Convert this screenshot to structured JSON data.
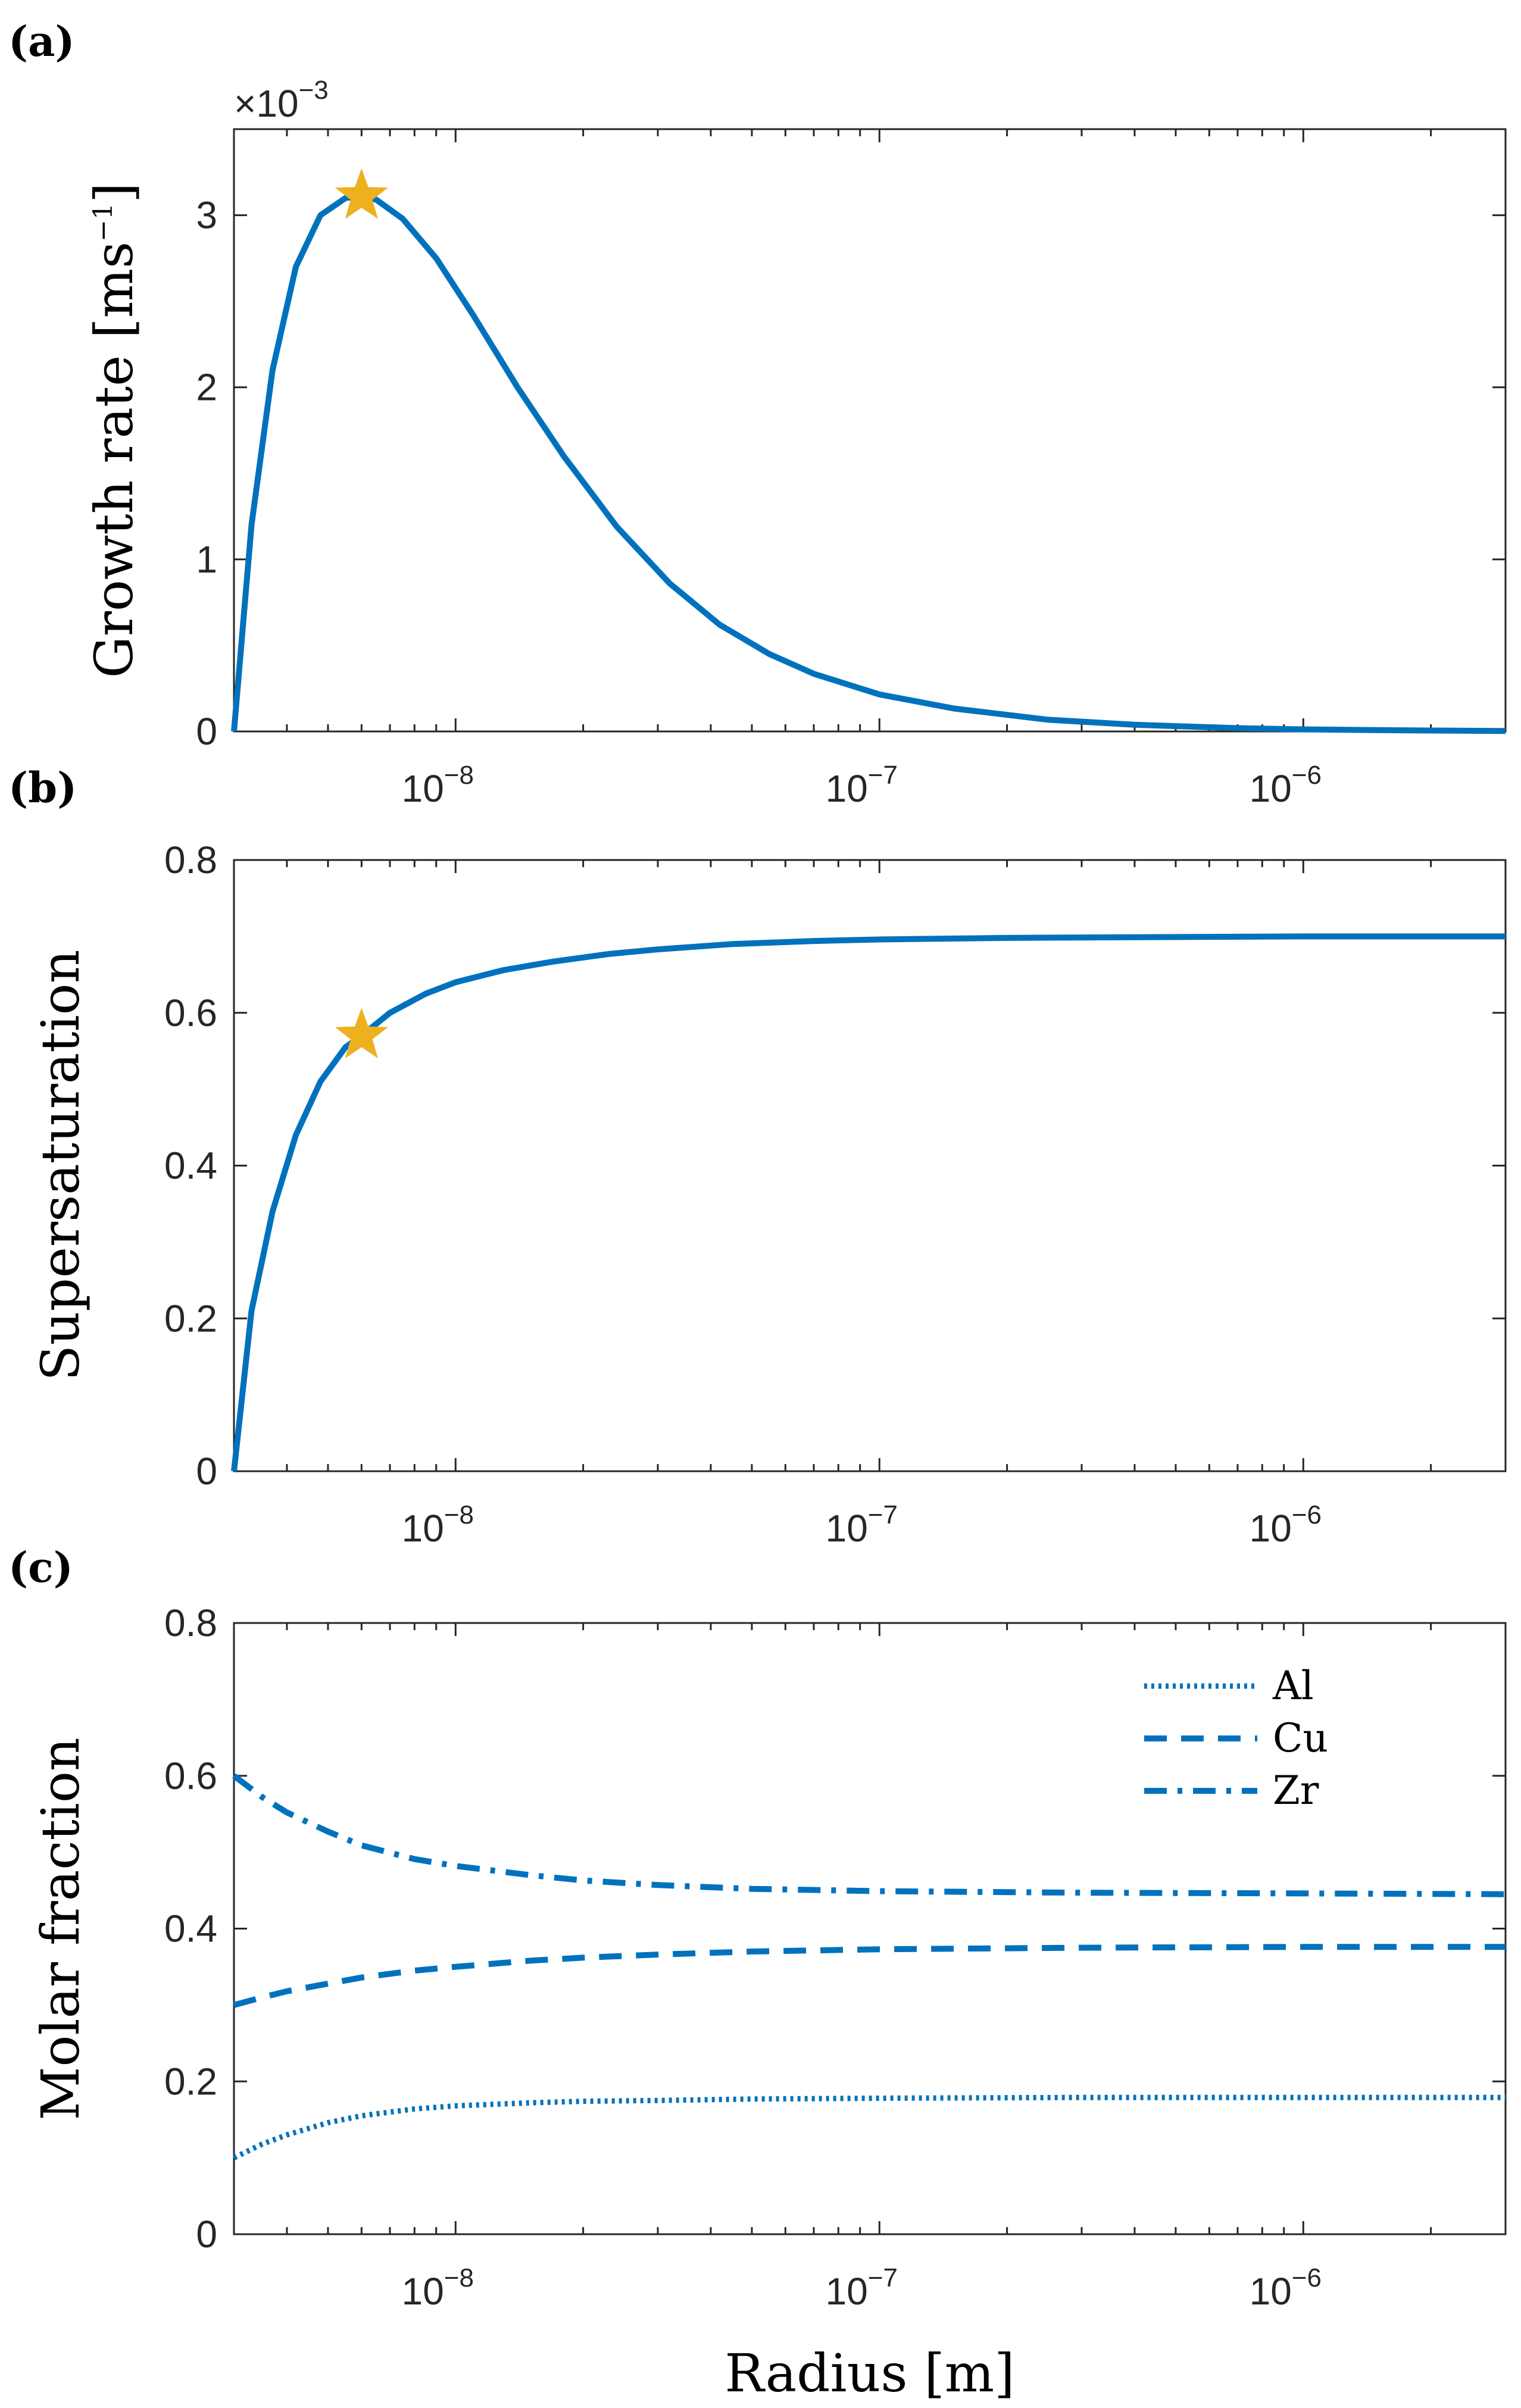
{
  "figure_labels": {
    "a": "(a)",
    "b": "(b)",
    "c": "(c)"
  },
  "colors": {
    "series": "#0072BD",
    "marker": "#EDB120",
    "axes": "#262626"
  },
  "chart_data": [
    {
      "id": "a",
      "type": "line",
      "title": "",
      "xlabel": "",
      "ylabel": "Growth rate [ms−1]",
      "ylabel_main": "Growth rate [ms",
      "ylabel_sup": "−1",
      "ylabel_end": "]",
      "xscale": "log",
      "xlim": [
        3e-09,
        3e-06
      ],
      "ylim": [
        0,
        3.5
      ],
      "y_multiplier": "×10",
      "y_multiplier_exp": "−3",
      "yticks": [
        0,
        1,
        2,
        3
      ],
      "yticklabels": [
        "0",
        "1",
        "2",
        "3"
      ],
      "xticks": [
        1e-08,
        1e-07,
        1e-06
      ],
      "xtick_base": "10",
      "xtick_exps": [
        "−8",
        "−7",
        "−6"
      ],
      "series": [
        {
          "name": "Growth rate",
          "x": [
            3e-09,
            3.3e-09,
            3.7e-09,
            4.2e-09,
            4.8e-09,
            5.5e-09,
            6e-09,
            6.5e-09,
            7.5e-09,
            9e-09,
            1.1e-08,
            1.4e-08,
            1.8e-08,
            2.4e-08,
            3.2e-08,
            4.2e-08,
            5.5e-08,
            7e-08,
            1e-07,
            1.5e-07,
            2.5e-07,
            4e-07,
            7e-07,
            1e-06,
            1.5e-06,
            2e-06,
            3e-06
          ],
          "y": [
            0,
            1.2,
            2.1,
            2.7,
            3.0,
            3.1,
            3.11,
            3.09,
            2.98,
            2.75,
            2.42,
            2.0,
            1.6,
            1.19,
            0.86,
            0.62,
            0.45,
            0.335,
            0.215,
            0.133,
            0.068,
            0.039,
            0.019,
            0.012,
            0.0075,
            0.0052,
            0.0026
          ]
        }
      ],
      "marker": {
        "x": 6e-09,
        "y": 3.11,
        "shape": "star"
      }
    },
    {
      "id": "b",
      "type": "line",
      "title": "",
      "xlabel": "",
      "ylabel": "Supersaturation",
      "xscale": "log",
      "xlim": [
        3e-09,
        3e-06
      ],
      "ylim": [
        0,
        0.8
      ],
      "yticks": [
        0,
        0.2,
        0.4,
        0.6,
        0.8
      ],
      "yticklabels": [
        "0",
        "0.2",
        "0.4",
        "0.6",
        "0.8"
      ],
      "xticks": [
        1e-08,
        1e-07,
        1e-06
      ],
      "xtick_base": "10",
      "xtick_exps": [
        "−8",
        "−7",
        "−6"
      ],
      "series": [
        {
          "name": "Supersaturation",
          "x": [
            3e-09,
            3.3e-09,
            3.7e-09,
            4.2e-09,
            4.8e-09,
            5.5e-09,
            6e-09,
            7e-09,
            8.5e-09,
            1e-08,
            1.3e-08,
            1.7e-08,
            2.3e-08,
            3e-08,
            4.5e-08,
            7e-08,
            1e-07,
            2e-07,
            4e-07,
            1e-06,
            3e-06
          ],
          "y": [
            0,
            0.21,
            0.34,
            0.44,
            0.51,
            0.555,
            0.57,
            0.6,
            0.625,
            0.64,
            0.656,
            0.667,
            0.677,
            0.683,
            0.69,
            0.694,
            0.696,
            0.698,
            0.699,
            0.7,
            0.7
          ]
        }
      ],
      "marker": {
        "x": 6e-09,
        "y": 0.57,
        "shape": "star"
      }
    },
    {
      "id": "c",
      "type": "line",
      "title": "",
      "xlabel": "Radius [m]",
      "ylabel": "Molar fraction",
      "xscale": "log",
      "xlim": [
        3e-09,
        3e-06
      ],
      "ylim": [
        0,
        0.8
      ],
      "yticks": [
        0,
        0.2,
        0.4,
        0.6,
        0.8
      ],
      "yticklabels": [
        "0",
        "0.2",
        "0.4",
        "0.6",
        "0.8"
      ],
      "xticks": [
        1e-08,
        1e-07,
        1e-06
      ],
      "xtick_base": "10",
      "xtick_exps": [
        "−8",
        "−7",
        "−6"
      ],
      "legend_position": "top-right",
      "series": [
        {
          "name": "Al",
          "style": "dotted",
          "x": [
            3e-09,
            3.5e-09,
            4e-09,
            5e-09,
            6e-09,
            8e-09,
            1e-08,
            1.5e-08,
            2e-08,
            3e-08,
            5e-08,
            1e-07,
            3e-07,
            1e-06,
            3e-06
          ],
          "y": [
            0.1,
            0.118,
            0.13,
            0.146,
            0.155,
            0.164,
            0.168,
            0.172,
            0.174,
            0.175,
            0.177,
            0.178,
            0.179,
            0.179,
            0.179
          ]
        },
        {
          "name": "Cu",
          "style": "dashed",
          "x": [
            3e-09,
            3.5e-09,
            4e-09,
            5e-09,
            6e-09,
            8e-09,
            1e-08,
            1.5e-08,
            2e-08,
            3e-08,
            5e-08,
            1e-07,
            3e-07,
            1e-06,
            3e-06
          ],
          "y": [
            0.3,
            0.31,
            0.318,
            0.328,
            0.336,
            0.345,
            0.35,
            0.358,
            0.362,
            0.366,
            0.37,
            0.373,
            0.375,
            0.376,
            0.376
          ]
        },
        {
          "name": "Zr",
          "style": "dashdot",
          "x": [
            3e-09,
            3.5e-09,
            4e-09,
            5e-09,
            6e-09,
            8e-09,
            1e-08,
            1.5e-08,
            2e-08,
            3e-08,
            5e-08,
            1e-07,
            3e-07,
            1e-06,
            3e-06
          ],
          "y": [
            0.6,
            0.572,
            0.552,
            0.527,
            0.509,
            0.491,
            0.482,
            0.47,
            0.463,
            0.457,
            0.452,
            0.449,
            0.447,
            0.446,
            0.445
          ]
        }
      ]
    }
  ]
}
